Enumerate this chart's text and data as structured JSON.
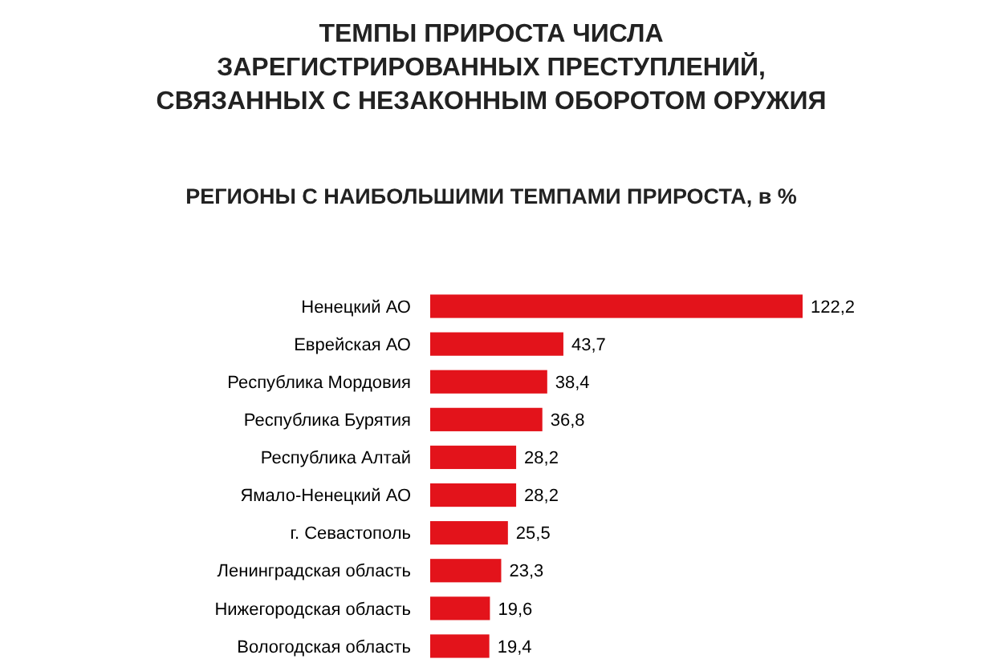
{
  "chart_data": {
    "type": "bar",
    "orientation": "horizontal",
    "title": "ТЕМПЫ ПРИРОСТА ЧИСЛА ЗАРЕГИСТРИРОВАННЫХ ПРЕСТУПЛЕНИЙ, СВЯЗАННЫХ С НЕЗАКОННЫМ ОБОРОТОМ ОРУЖИЯ",
    "subtitle": "РЕГИОНЫ С НАИБОЛЬШИМИ ТЕМПАМИ ПРИРОСТА, в %",
    "categories": [
      "Ненецкий АО",
      "Еврейская АО",
      "Республика Мордовия",
      "Республика Бурятия",
      "Республика Алтай",
      "Ямало-Ненецкий АО",
      "г. Севастополь",
      "Ленинградская область",
      "Нижегородская область",
      "Вологодская область"
    ],
    "values": [
      122.2,
      43.7,
      38.4,
      36.8,
      28.2,
      28.2,
      25.5,
      23.3,
      19.6,
      19.4
    ],
    "value_labels": [
      "122,2",
      "43,7",
      "38,4",
      "36,8",
      "28,2",
      "28,2",
      "25,5",
      "23,3",
      "19,6",
      "19,4"
    ],
    "color": "#e3131b"
  }
}
